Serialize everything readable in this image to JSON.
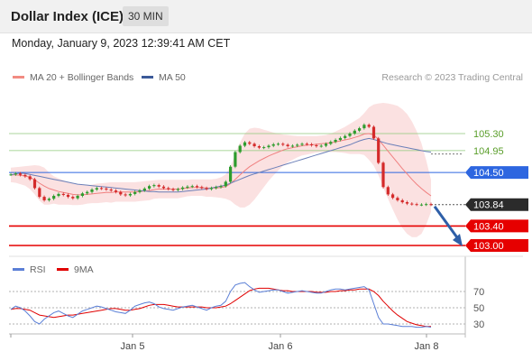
{
  "header": {
    "title": "Dollar Index (ICE)",
    "timeframe": "30 MIN"
  },
  "datetime": "Monday, January 9, 2023 12:39:41 AM CET",
  "legend": {
    "items": [
      {
        "label": "MA 20 + Bollinger Bands",
        "color": "#f28b82"
      },
      {
        "label": "MA 50",
        "color": "#3c5a99"
      }
    ],
    "credit": "Research © 2023 Trading Central"
  },
  "rsi_legend": {
    "items": [
      {
        "label": "RSI",
        "color": "#5b7fd6"
      },
      {
        "label": "9MA",
        "color": "#e00000"
      }
    ]
  },
  "colors": {
    "up": "#2d9c2d",
    "down": "#d42a2a",
    "level_green": "#8fc97a",
    "resistance_red": "#e60000",
    "current_dark": "#2b2b2b",
    "pivot_blue": "#2d66e0",
    "arrow": "#2e5fa8"
  },
  "chart_data": [
    {
      "type": "candlestick",
      "x_ticks": [
        "Jan 5",
        "Jan 6",
        "Jan 8"
      ],
      "y_range": [
        102.9,
        105.5
      ],
      "levels": [
        {
          "label": "105.30",
          "value": 105.3,
          "kind": "resistance"
        },
        {
          "label": "104.95",
          "value": 104.95,
          "kind": "resistance"
        },
        {
          "label": "104.50",
          "value": 104.5,
          "kind": "pivot"
        },
        {
          "label": "103.84",
          "value": 103.84,
          "kind": "current"
        },
        {
          "label": "103.40",
          "value": 103.4,
          "kind": "support"
        },
        {
          "label": "103.00",
          "value": 103.0,
          "kind": "support"
        }
      ],
      "close": [
        104.46,
        104.48,
        104.45,
        104.42,
        104.36,
        104.18,
        104.0,
        103.93,
        103.96,
        104.02,
        104.06,
        104.04,
        104.0,
        103.97,
        104.02,
        104.07,
        104.1,
        104.15,
        104.18,
        104.17,
        104.15,
        104.13,
        104.1,
        104.05,
        104.03,
        104.06,
        104.1,
        104.13,
        104.17,
        104.22,
        104.24,
        104.21,
        104.18,
        104.16,
        104.14,
        104.16,
        104.19,
        104.21,
        104.22,
        104.2,
        104.18,
        104.16,
        104.18,
        104.2,
        104.22,
        104.31,
        104.62,
        104.92,
        105.05,
        105.12,
        105.09,
        105.04,
        105.01,
        105.02,
        105.05,
        105.08,
        105.09,
        105.07,
        105.04,
        105.05,
        105.07,
        105.09,
        105.08,
        105.06,
        105.04,
        105.05,
        105.09,
        105.13,
        105.17,
        105.21,
        105.25,
        105.3,
        105.36,
        105.41,
        105.48,
        105.44,
        105.2,
        104.7,
        104.2,
        104.05,
        103.98,
        103.93,
        103.89,
        103.86,
        103.85,
        103.84,
        103.84,
        103.85,
        103.84
      ],
      "ma20": [
        104.45,
        104.45,
        104.44,
        104.43,
        104.4,
        104.35,
        104.28,
        104.22,
        104.17,
        104.14,
        104.11,
        104.09,
        104.07,
        104.05,
        104.04,
        104.04,
        104.05,
        104.06,
        104.07,
        104.08,
        104.09,
        104.09,
        104.1,
        104.1,
        104.1,
        104.1,
        104.1,
        104.11,
        104.12,
        104.13,
        104.15,
        104.16,
        104.16,
        104.16,
        104.16,
        104.16,
        104.17,
        104.18,
        104.19,
        104.19,
        104.19,
        104.18,
        104.18,
        104.18,
        104.19,
        104.21,
        104.27,
        104.36,
        104.45,
        104.54,
        104.62,
        104.68,
        104.74,
        104.79,
        104.84,
        104.88,
        104.92,
        104.96,
        104.99,
        105.01,
        105.03,
        105.05,
        105.06,
        105.07,
        105.08,
        105.09,
        105.1,
        105.11,
        105.13,
        105.15,
        105.17,
        105.19,
        105.22,
        105.25,
        105.29,
        105.3,
        105.27,
        105.18,
        105.06,
        104.94,
        104.82,
        104.7,
        104.58,
        104.47,
        104.36,
        104.26,
        104.17,
        104.09,
        104.02
      ],
      "bb_upper": [
        104.6,
        104.61,
        104.62,
        104.63,
        104.64,
        104.65,
        104.64,
        104.6,
        104.5,
        104.42,
        104.38,
        104.34,
        104.3,
        104.27,
        104.25,
        104.24,
        104.24,
        104.25,
        104.27,
        104.28,
        104.29,
        104.3,
        104.3,
        104.3,
        104.3,
        104.3,
        104.3,
        104.31,
        104.32,
        104.33,
        104.34,
        104.35,
        104.35,
        104.35,
        104.35,
        104.35,
        104.35,
        104.35,
        104.36,
        104.36,
        104.36,
        104.36,
        104.36,
        104.37,
        104.4,
        104.46,
        104.62,
        104.88,
        105.12,
        105.3,
        105.4,
        105.42,
        105.41,
        105.38,
        105.35,
        105.32,
        105.3,
        105.28,
        105.27,
        105.26,
        105.25,
        105.25,
        105.25,
        105.25,
        105.25,
        105.26,
        105.27,
        105.3,
        105.34,
        105.39,
        105.44,
        105.5,
        105.56,
        105.62,
        105.72,
        105.84,
        105.9,
        105.92,
        105.93,
        105.92,
        105.9,
        105.87,
        105.8,
        105.7,
        105.55,
        105.35,
        105.1,
        104.75,
        104.35
      ],
      "bb_lower": [
        104.3,
        104.29,
        104.26,
        104.23,
        104.16,
        104.05,
        103.92,
        103.84,
        103.84,
        103.86,
        103.84,
        103.84,
        103.84,
        103.83,
        103.83,
        103.84,
        103.86,
        103.87,
        103.87,
        103.88,
        103.89,
        103.88,
        103.9,
        103.9,
        103.9,
        103.9,
        103.9,
        103.91,
        103.92,
        103.93,
        103.96,
        103.97,
        103.97,
        103.97,
        103.97,
        103.97,
        103.99,
        104.01,
        104.02,
        104.02,
        104.02,
        104.0,
        104.0,
        103.99,
        103.98,
        103.96,
        103.92,
        103.84,
        103.78,
        103.78,
        103.84,
        103.94,
        104.07,
        104.2,
        104.33,
        104.44,
        104.54,
        104.64,
        104.71,
        104.76,
        104.81,
        104.85,
        104.87,
        104.89,
        104.91,
        104.92,
        104.93,
        104.92,
        104.92,
        104.91,
        104.9,
        104.88,
        104.88,
        104.88,
        104.86,
        104.76,
        104.64,
        104.44,
        104.19,
        103.96,
        103.74,
        103.53,
        103.36,
        103.24,
        103.17,
        103.17,
        103.24,
        103.43,
        103.69
      ],
      "ma50": [
        104.45,
        104.47,
        104.49,
        104.48,
        104.46,
        104.44,
        104.42,
        104.4,
        104.38,
        104.36,
        104.34,
        104.32,
        104.3,
        104.28,
        104.26,
        104.25,
        104.24,
        104.23,
        104.22,
        104.21,
        104.2,
        104.19,
        104.18,
        104.17,
        104.16,
        104.15,
        104.14,
        104.13,
        104.12,
        104.11,
        104.11,
        104.1,
        104.1,
        104.1,
        104.1,
        104.1,
        104.11,
        104.12,
        104.13,
        104.14,
        104.15,
        104.16,
        104.18,
        104.2,
        104.22,
        104.24,
        104.28,
        104.32,
        104.36,
        104.4,
        104.44,
        104.47,
        104.5,
        104.53,
        104.56,
        104.59,
        104.62,
        104.65,
        104.68,
        104.71,
        104.74,
        104.77,
        104.8,
        104.83,
        104.86,
        104.89,
        104.92,
        104.95,
        104.98,
        105.01,
        105.04,
        105.07,
        105.11,
        105.15,
        105.18,
        105.2,
        105.18,
        105.15,
        105.12,
        105.09,
        105.07,
        105.05,
        105.03,
        105.01,
        104.99,
        104.97,
        104.95,
        104.93,
        104.92
      ],
      "projection": {
        "from": 103.84,
        "to": 103.0
      }
    },
    {
      "type": "line",
      "name": "RSI",
      "y_ticks": [
        70,
        50,
        30
      ],
      "y_range": [
        10,
        90
      ],
      "rsi": [
        48,
        52,
        50,
        46,
        40,
        33,
        30,
        36,
        40,
        44,
        46,
        43,
        40,
        38,
        42,
        46,
        48,
        50,
        52,
        51,
        49,
        47,
        45,
        44,
        43,
        47,
        52,
        54,
        56,
        57,
        55,
        51,
        49,
        48,
        47,
        49,
        51,
        52,
        53,
        51,
        49,
        47,
        50,
        52,
        53,
        58,
        70,
        78,
        80,
        81,
        76,
        72,
        69,
        70,
        71,
        72,
        72,
        70,
        68,
        69,
        70,
        71,
        70,
        69,
        68,
        68,
        70,
        72,
        73,
        73,
        72,
        73,
        74,
        75,
        76,
        72,
        55,
        38,
        30,
        30,
        29,
        28,
        27,
        27,
        27,
        26,
        26,
        27,
        26
      ],
      "rsi_ma": [
        48,
        49,
        49,
        48,
        47,
        44,
        41,
        40,
        39,
        38,
        39,
        40,
        41,
        41,
        42,
        43,
        44,
        45,
        46,
        47,
        48,
        49,
        49,
        48,
        47,
        47,
        48,
        49,
        51,
        53,
        54,
        54,
        54,
        53,
        52,
        51,
        51,
        51,
        51,
        51,
        51,
        50,
        50,
        50,
        51,
        52,
        55,
        59,
        63,
        67,
        71,
        73,
        74,
        74,
        74,
        73,
        72,
        71,
        71,
        70,
        70,
        70,
        70,
        70,
        69,
        69,
        69,
        70,
        70,
        71,
        71,
        72,
        72,
        73,
        73,
        73,
        70,
        65,
        58,
        52,
        46,
        41,
        37,
        33,
        31,
        29,
        28,
        27,
        27
      ]
    }
  ]
}
